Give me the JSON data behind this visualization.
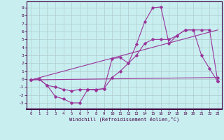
{
  "xlabel": "Windchill (Refroidissement éolien,°C)",
  "xlim": [
    -0.5,
    23.5
  ],
  "ylim": [
    -3.8,
    9.8
  ],
  "yticks": [
    -3,
    -2,
    -1,
    0,
    1,
    2,
    3,
    4,
    5,
    6,
    7,
    8,
    9
  ],
  "xticks": [
    0,
    1,
    2,
    3,
    4,
    5,
    6,
    7,
    8,
    9,
    10,
    11,
    12,
    13,
    14,
    15,
    16,
    17,
    18,
    19,
    20,
    21,
    22,
    23
  ],
  "bg_color": "#c8eef0",
  "line_color": "#993399",
  "grid_color": "#b0cccc",
  "series1_x": [
    0,
    1,
    2,
    3,
    4,
    5,
    6,
    7,
    8,
    9,
    10,
    11,
    12,
    13,
    14,
    15,
    16,
    17,
    18,
    19,
    20,
    21,
    22,
    23
  ],
  "series1_y": [
    -0.1,
    0.0,
    -0.8,
    -2.2,
    -2.5,
    -3.0,
    -3.0,
    -1.3,
    -1.4,
    -1.2,
    2.6,
    2.7,
    2.0,
    4.4,
    7.2,
    9.0,
    9.1,
    4.5,
    5.5,
    6.2,
    6.2,
    3.0,
    1.3,
    -0.3
  ],
  "series2_x": [
    0,
    1,
    2,
    3,
    4,
    5,
    6,
    7,
    8,
    9,
    10,
    11,
    12,
    13,
    14,
    15,
    16,
    17,
    18,
    19,
    20,
    21,
    22,
    23
  ],
  "series2_y": [
    -0.1,
    0.0,
    -0.8,
    -1.0,
    -1.3,
    -1.5,
    -1.3,
    -1.3,
    -1.3,
    -1.2,
    0.2,
    1.0,
    2.0,
    3.0,
    4.5,
    5.0,
    5.0,
    5.0,
    5.5,
    6.2,
    6.2,
    6.2,
    6.2,
    -0.3
  ],
  "series3_x": [
    0,
    23
  ],
  "series3_y": [
    -0.1,
    0.0
  ]
}
